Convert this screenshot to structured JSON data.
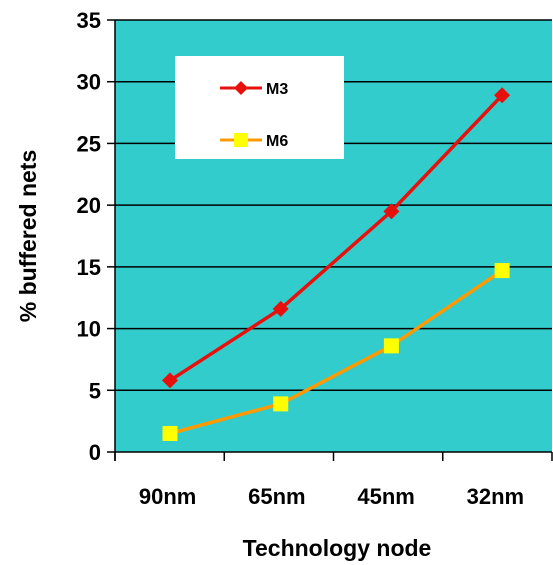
{
  "chart_data": {
    "type": "line",
    "title": "",
    "xlabel": "Technology node",
    "ylabel": "% buffered nets",
    "categories": [
      "90nm",
      "65nm",
      "45nm",
      "32nm"
    ],
    "ylim": [
      0,
      35
    ],
    "yticks": [
      "0",
      "5",
      "10",
      "15",
      "20",
      "25",
      "30",
      "35"
    ],
    "grid": true,
    "legend_position": "top-left",
    "plot_background": "#33CCCC",
    "series": [
      {
        "name": "M3",
        "values": [
          5.8,
          11.6,
          19.5,
          28.9
        ],
        "color": "#E8100C",
        "marker": "diamond"
      },
      {
        "name": "M6",
        "values": [
          1.5,
          3.9,
          8.6,
          14.7
        ],
        "color": "#FF9900",
        "marker_color": "#FFFF00",
        "marker": "square"
      }
    ]
  }
}
